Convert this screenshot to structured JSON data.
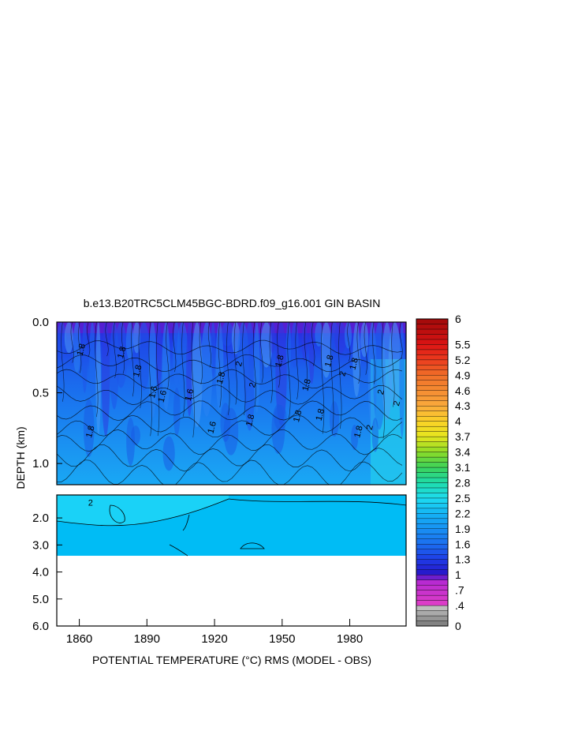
{
  "chart_data": {
    "type": "heatmap",
    "title": "b.e13.B20TRC5CLM45BGC-BDRD.f09_g16.001 GIN BASIN",
    "xlabel": "POTENTIAL TEMPERATURE (°C) RMS (MODEL - OBS)",
    "ylabel": "DEPTH (km)",
    "x_ticks": [
      "1860",
      "1890",
      "1920",
      "1950",
      "1980"
    ],
    "x_tick_values": [
      1860,
      1890,
      1920,
      1950,
      1980
    ],
    "xlim": [
      1850,
      2005
    ],
    "upper_panel": {
      "y_ticks": [
        "0.0",
        "0.5",
        "1.0"
      ],
      "y_tick_values": [
        0.0,
        0.5,
        1.0
      ],
      "ylim": [
        0.0,
        1.15
      ]
    },
    "lower_panel": {
      "y_ticks": [
        "2.0",
        "3.0",
        "4.0",
        "5.0",
        "6.0"
      ],
      "y_tick_values": [
        2.0,
        3.0,
        4.0,
        5.0,
        6.0
      ],
      "ylim": [
        1.15,
        6.0
      ],
      "data_bottom_depth": 3.4
    },
    "colorbar": {
      "labels": [
        "6",
        "5.5",
        "5.2",
        "4.9",
        "4.6",
        "4.3",
        "4",
        "3.7",
        "3.4",
        "3.1",
        "2.8",
        "2.5",
        "2.2",
        "1.9",
        "1.6",
        "1.3",
        "1",
        ".7",
        ".4",
        "0"
      ],
      "label_values": [
        6.0,
        5.5,
        5.2,
        4.9,
        4.6,
        4.3,
        4.0,
        3.7,
        3.4,
        3.1,
        2.8,
        2.5,
        2.2,
        1.9,
        1.6,
        1.3,
        1.0,
        0.7,
        0.4,
        0.0
      ],
      "range": [
        0,
        6
      ]
    },
    "contour_labels": [
      {
        "text": "1.8",
        "x": 1862,
        "depth": 0.2
      },
      {
        "text": "1.8",
        "x": 1880,
        "depth": 0.22
      },
      {
        "text": "1.8",
        "x": 1887,
        "depth": 0.35
      },
      {
        "text": "1.6",
        "x": 1894,
        "depth": 0.5
      },
      {
        "text": "1.6",
        "x": 1898,
        "depth": 0.53
      },
      {
        "text": "1.6",
        "x": 1910,
        "depth": 0.52
      },
      {
        "text": "1.6",
        "x": 1920,
        "depth": 0.75
      },
      {
        "text": "1.8",
        "x": 1866,
        "depth": 0.78
      },
      {
        "text": "1.8",
        "x": 1924,
        "depth": 0.4
      },
      {
        "text": "2",
        "x": 1932,
        "depth": 0.3
      },
      {
        "text": "2",
        "x": 1938,
        "depth": 0.45
      },
      {
        "text": "1.8",
        "x": 1937,
        "depth": 0.7
      },
      {
        "text": "1.8",
        "x": 1950,
        "depth": 0.28
      },
      {
        "text": "1.8",
        "x": 1962,
        "depth": 0.45
      },
      {
        "text": "1.8",
        "x": 1958,
        "depth": 0.67
      },
      {
        "text": "1.8",
        "x": 1968,
        "depth": 0.66
      },
      {
        "text": "1.8",
        "x": 1972,
        "depth": 0.28
      },
      {
        "text": "2",
        "x": 1978,
        "depth": 0.37
      },
      {
        "text": "1.8",
        "x": 1983,
        "depth": 0.3
      },
      {
        "text": "1.8",
        "x": 1985,
        "depth": 0.78
      },
      {
        "text": "2",
        "x": 1990,
        "depth": 0.75
      },
      {
        "text": "2",
        "x": 1995,
        "depth": 0.5
      },
      {
        "text": "2",
        "x": 2002,
        "depth": 0.58
      },
      {
        "text": "2",
        "x": 1865,
        "depth": 1.55
      }
    ]
  }
}
